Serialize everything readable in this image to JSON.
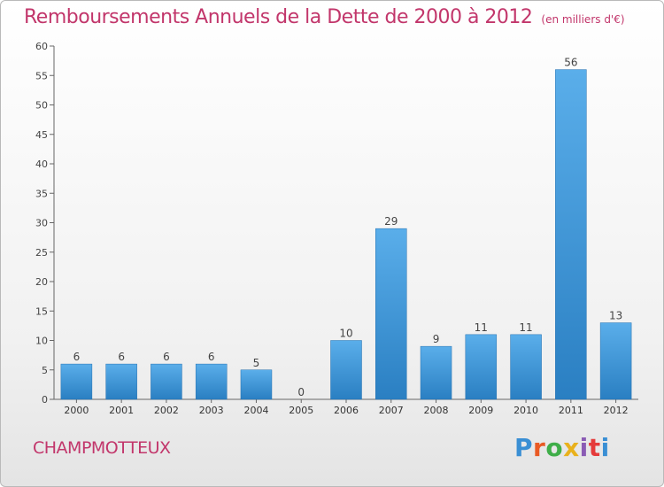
{
  "title": "Remboursements Annuels de la Dette de 2000 à 2012",
  "subtitle": "(en milliers d'€)",
  "commune": "CHAMPMOTTEUX",
  "logo": [
    "P",
    "r",
    "o",
    "x",
    "i",
    "t",
    "i"
  ],
  "colors": {
    "title": "#c2366b",
    "bar_top": "#5aaeea",
    "bar_bottom": "#2a7fc2"
  },
  "chart_data": {
    "type": "bar",
    "categories": [
      "2000",
      "2001",
      "2002",
      "2003",
      "2004",
      "2005",
      "2006",
      "2007",
      "2008",
      "2009",
      "2010",
      "2011",
      "2012"
    ],
    "values": [
      6,
      6,
      6,
      6,
      5,
      0,
      10,
      29,
      9,
      11,
      11,
      56,
      13
    ],
    "ylim": [
      0,
      60
    ],
    "yticks": [
      0,
      5,
      10,
      15,
      20,
      25,
      30,
      35,
      40,
      45,
      50,
      55,
      60
    ],
    "grid": false,
    "legend": "none"
  }
}
